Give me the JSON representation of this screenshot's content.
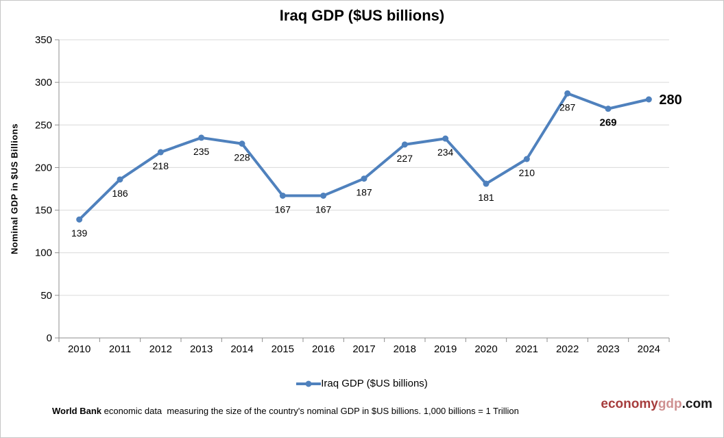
{
  "header": {
    "title": "Iraq GDP ($US billions)"
  },
  "chart_data": {
    "type": "line",
    "title": "Iraq GDP ($US billions)",
    "xlabel": "",
    "ylabel": "Nominal GDP in $US Billions",
    "categories": [
      "2010",
      "2011",
      "2012",
      "2013",
      "2014",
      "2015",
      "2016",
      "2017",
      "2018",
      "2019",
      "2020",
      "2021",
      "2022",
      "2023",
      "2024"
    ],
    "values": [
      139,
      186,
      218,
      235,
      228,
      167,
      167,
      187,
      227,
      234,
      181,
      210,
      287,
      269,
      280
    ],
    "ylim": [
      0,
      350
    ],
    "ytick_step": 50,
    "grid": "horizontal",
    "legend_position": "bottom",
    "legend_label": "Iraq GDP ($US billions)",
    "line_color": "#4F81BD",
    "grid_color": "#d9d9d9",
    "axis_color": "#8c8c8c",
    "bold_label_years": [
      "2023",
      "2024"
    ]
  },
  "footer": {
    "source_bold": "World Bank",
    "description": " economic data  measuring the size of the country's nominal GDP in $US billions. 1,000 billions = 1 Trillion",
    "brand": {
      "part1": "economy",
      "part2": "gdp",
      "part3": ".com"
    }
  }
}
